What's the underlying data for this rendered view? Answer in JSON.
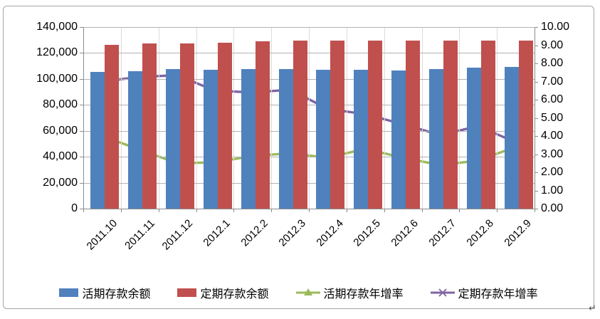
{
  "page": {
    "return_mark": "↵"
  },
  "chart_data": {
    "type": "bar",
    "subtype": "combo-bar-line",
    "categories": [
      "2011.10",
      "2011.11",
      "2011.12",
      "2012.1",
      "2012.2",
      "2012.3",
      "2012.4",
      "2012.5",
      "2012.6",
      "2012.7",
      "2012.8",
      "2012.9"
    ],
    "series": [
      {
        "name": "活期存款余额",
        "kind": "bar",
        "axis": "left",
        "color": "#4f81bd",
        "values": [
          105500,
          106200,
          107500,
          107300,
          107700,
          107500,
          106800,
          106900,
          106600,
          107800,
          108600,
          109000
        ]
      },
      {
        "name": "定期存款余额",
        "kind": "bar",
        "axis": "left",
        "color": "#c0504d",
        "values": [
          126400,
          127200,
          127200,
          128100,
          129300,
          129700,
          129700,
          129700,
          129600,
          129400,
          129500,
          129600
        ]
      },
      {
        "name": "活期存款年增率",
        "kind": "line",
        "marker": "triangle",
        "axis": "right",
        "color": "#9bbb59",
        "values": [
          4.0,
          3.25,
          2.5,
          2.55,
          2.9,
          3.05,
          2.8,
          3.3,
          2.8,
          2.4,
          2.65,
          3.4
        ]
      },
      {
        "name": "定期存款年增率",
        "kind": "line",
        "marker": "x",
        "axis": "right",
        "color": "#8064a2",
        "values": [
          7.0,
          7.25,
          7.35,
          6.5,
          6.4,
          6.55,
          5.5,
          5.2,
          4.65,
          4.05,
          4.55,
          3.65
        ]
      }
    ],
    "left_axis": {
      "min": 0,
      "max": 140000,
      "step": 20000,
      "tick_labels": [
        "0",
        "20,000",
        "40,000",
        "60,000",
        "80,000",
        "100,000",
        "120,000",
        "140,000"
      ]
    },
    "right_axis": {
      "min": 0,
      "max": 10,
      "step": 1,
      "tick_labels": [
        "0.00",
        "1.00",
        "2.00",
        "3.00",
        "4.00",
        "5.00",
        "6.00",
        "7.00",
        "8.00",
        "9.00",
        "10.00"
      ]
    },
    "legend_position": "bottom",
    "grid": {
      "horizontal": true,
      "vertical": true
    },
    "title": "",
    "xlabel": "",
    "ylabel": ""
  }
}
